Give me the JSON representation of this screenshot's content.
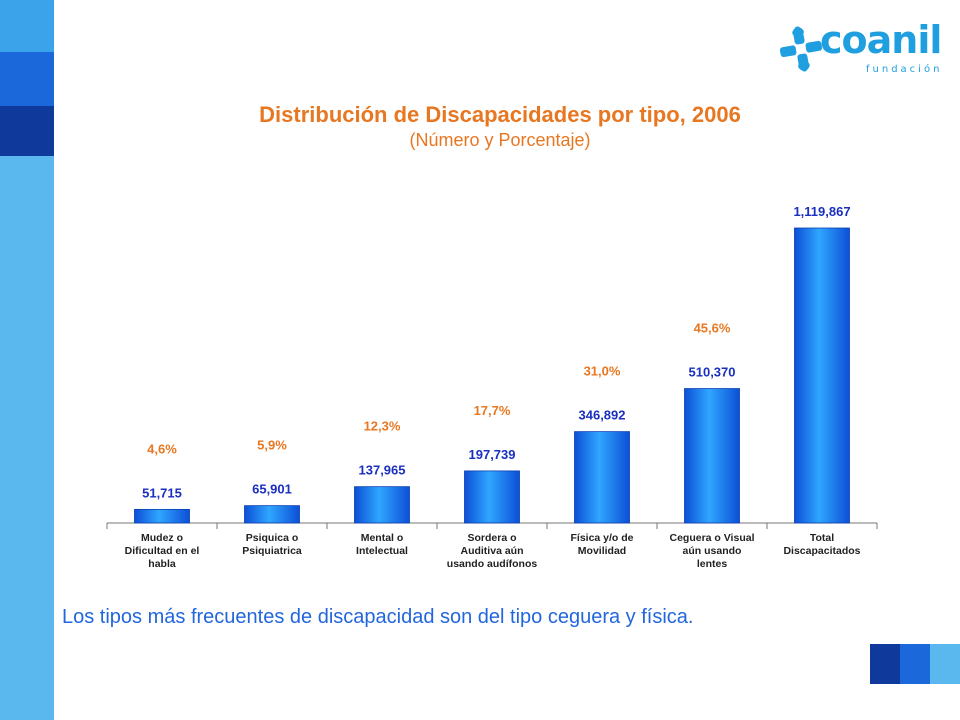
{
  "header": {
    "title": "Distribución de Discapacidades por tipo, 2006",
    "subtitle": "(Número y Porcentaje)"
  },
  "logo": {
    "name": "coanil",
    "subtitle": "fundación"
  },
  "footer": {
    "text": "Los tipos más frecuentes de discapacidad son del tipo ceguera y física."
  },
  "colors": {
    "accent_orange": "#e87722",
    "value_blue": "#1a2fbf",
    "bar_blue": "#1f86f2",
    "band_blue": "#5bb8ee"
  },
  "chart_data": {
    "type": "bar",
    "title": "Distribución de Discapacidades por tipo, 2006",
    "subtitle": "(Número y Porcentaje)",
    "categories": [
      [
        "Mudez o",
        "Dificultad en el",
        "habla"
      ],
      [
        "Psiquica o",
        "Psiquiatrica"
      ],
      [
        "Mental o",
        "Intelectual"
      ],
      [
        "Sordera o",
        "Auditiva aún",
        "usando audífonos"
      ],
      [
        "Física y/o de",
        "Movilidad"
      ],
      [
        "Ceguera o Visual",
        "aún usando",
        "lentes"
      ],
      [
        "Total",
        "Discapacitados"
      ]
    ],
    "values": [
      51715,
      65901,
      137965,
      197739,
      346892,
      510370,
      1119867
    ],
    "value_labels": [
      "51,715",
      "65,901",
      "137,965",
      "197,739",
      "346,892",
      "510,370",
      "1,119,867"
    ],
    "percent_labels": [
      "4,6%",
      "5,9%",
      "12,3%",
      "17,7%",
      "31,0%",
      "45,6%",
      ""
    ],
    "ylim": [
      0,
      1119867
    ],
    "grid": false,
    "legend": "none"
  }
}
